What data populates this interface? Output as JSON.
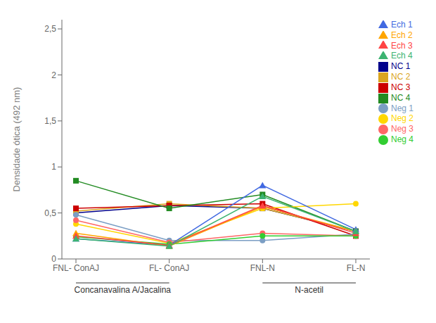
{
  "chart_data": {
    "type": "line",
    "categories": [
      "FNL- ConAJ",
      "FL- ConAJ",
      "FNL-N",
      "FL-N"
    ],
    "ylabel": "Densidade ótica (492 nm)",
    "ylim": [
      0,
      2.6
    ],
    "yticks": [
      0,
      {
        "value": 0.5,
        "label": "0,5"
      },
      1,
      {
        "value": 1.5,
        "label": "1,5"
      },
      2,
      {
        "value": 2.5,
        "label": "2,5"
      }
    ],
    "grid": false,
    "legend": "right",
    "series": [
      {
        "name": "NC 1",
        "color": "#00008B",
        "marker": "square",
        "values": [
          0.5,
          0.58,
          0.55,
          0.3
        ]
      },
      {
        "name": "NC 2",
        "color": "#DAA520",
        "marker": "square",
        "values": [
          0.52,
          0.6,
          0.55,
          0.3
        ]
      },
      {
        "name": "NC 3",
        "color": "#CC0000",
        "marker": "square",
        "values": [
          0.55,
          0.58,
          0.6,
          0.25
        ]
      },
      {
        "name": "NC 4",
        "color": "#228B22",
        "marker": "square",
        "values": [
          0.85,
          0.55,
          0.7,
          0.3
        ]
      },
      {
        "name": "Neg 1",
        "color": "#7B9EC4",
        "marker": "circle",
        "values": [
          0.48,
          0.2,
          0.2,
          0.27
        ]
      },
      {
        "name": "Neg 2",
        "color": "#FFD700",
        "marker": "circle",
        "values": [
          0.38,
          0.17,
          0.55,
          0.6
        ]
      },
      {
        "name": "Neg 3",
        "color": "#FF6666",
        "marker": "circle",
        "values": [
          0.42,
          0.18,
          0.28,
          0.25
        ]
      },
      {
        "name": "Neg 4",
        "color": "#32CD32",
        "marker": "circle",
        "values": [
          0.24,
          0.16,
          0.25,
          0.25
        ]
      },
      {
        "name": "Ech 1",
        "color": "#4169E1",
        "marker": "triangle",
        "values": [
          0.22,
          0.15,
          0.8,
          0.32
        ]
      },
      {
        "name": "Ech 2",
        "color": "#FFA500",
        "marker": "triangle",
        "values": [
          0.28,
          0.14,
          0.57,
          0.3
        ]
      },
      {
        "name": "Ech 3",
        "color": "#FF4444",
        "marker": "triangle",
        "values": [
          0.25,
          0.15,
          0.58,
          0.28
        ]
      },
      {
        "name": "Ech 4",
        "color": "#3CB371",
        "marker": "triangle",
        "values": [
          0.22,
          0.14,
          0.68,
          0.3
        ]
      }
    ],
    "annotations": [
      {
        "text": "Concanavalina A/Jacalina",
        "categories": [
          "FNL- ConAJ",
          "FL- ConAJ"
        ]
      },
      {
        "text": "N-acetil",
        "categories": [
          "FNL-N",
          "FL-N"
        ]
      }
    ]
  }
}
